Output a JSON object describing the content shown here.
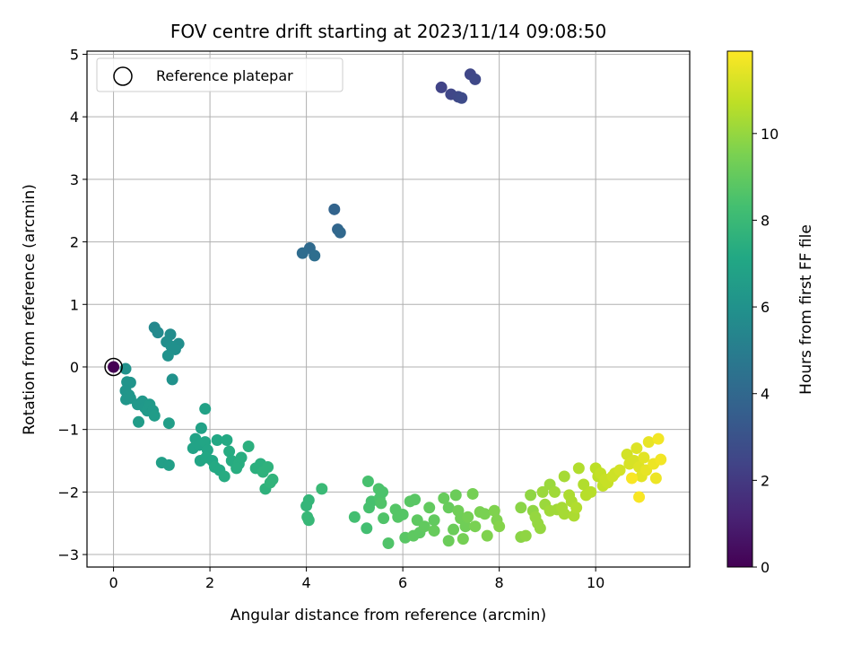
{
  "chart_data": {
    "type": "scatter",
    "title": "FOV centre drift starting at 2023/11/14 09:08:50",
    "xlabel": "Angular distance from reference (arcmin)",
    "ylabel": "Rotation from reference (arcmin)",
    "xlim": [
      -0.55,
      11.95
    ],
    "ylim": [
      -3.2,
      5.05
    ],
    "xticks": [
      0,
      2,
      4,
      6,
      8,
      10
    ],
    "yticks": [
      -3,
      -2,
      -1,
      0,
      1,
      2,
      3,
      4,
      5
    ],
    "grid": true,
    "legend": {
      "position": "upper-left",
      "entries": [
        "Reference platepar"
      ]
    },
    "reference_point": {
      "x": 0,
      "y": 0,
      "label": "Reference platepar"
    },
    "colorbar": {
      "label": "Hours from first FF file",
      "range": [
        0,
        11.9
      ],
      "ticks": [
        0,
        2,
        4,
        6,
        8,
        10
      ],
      "colormap": "viridis"
    },
    "series": [
      {
        "color_by": "hours",
        "points": [
          {
            "x": 0.0,
            "y": 0.0,
            "c": 0.0
          },
          {
            "x": 6.8,
            "y": 4.47,
            "c": 2.4
          },
          {
            "x": 7.0,
            "y": 4.36,
            "c": 2.5
          },
          {
            "x": 7.15,
            "y": 4.32,
            "c": 2.6
          },
          {
            "x": 7.22,
            "y": 4.3,
            "c": 2.7
          },
          {
            "x": 7.4,
            "y": 4.68,
            "c": 2.5
          },
          {
            "x": 7.5,
            "y": 4.6,
            "c": 2.6
          },
          {
            "x": 4.58,
            "y": 2.52,
            "c": 3.8
          },
          {
            "x": 4.65,
            "y": 2.2,
            "c": 3.9
          },
          {
            "x": 4.7,
            "y": 2.15,
            "c": 4.0
          },
          {
            "x": 4.07,
            "y": 1.9,
            "c": 4.1
          },
          {
            "x": 3.92,
            "y": 1.82,
            "c": 4.2
          },
          {
            "x": 4.17,
            "y": 1.78,
            "c": 4.3
          },
          {
            "x": 0.85,
            "y": 0.63,
            "c": 5.5
          },
          {
            "x": 0.92,
            "y": 0.55,
            "c": 5.6
          },
          {
            "x": 1.18,
            "y": 0.52,
            "c": 5.7
          },
          {
            "x": 1.1,
            "y": 0.4,
            "c": 5.8
          },
          {
            "x": 1.35,
            "y": 0.37,
            "c": 5.8
          },
          {
            "x": 1.2,
            "y": 0.33,
            "c": 5.9
          },
          {
            "x": 1.28,
            "y": 0.28,
            "c": 5.9
          },
          {
            "x": 1.13,
            "y": 0.18,
            "c": 6.0
          },
          {
            "x": 1.22,
            "y": -0.2,
            "c": 6.0
          },
          {
            "x": 0.25,
            "y": -0.03,
            "c": 6.0
          },
          {
            "x": 0.28,
            "y": -0.24,
            "c": 6.1
          },
          {
            "x": 0.35,
            "y": -0.25,
            "c": 6.1
          },
          {
            "x": 0.25,
            "y": -0.38,
            "c": 6.1
          },
          {
            "x": 0.32,
            "y": -0.45,
            "c": 6.2
          },
          {
            "x": 0.26,
            "y": -0.52,
            "c": 6.2
          },
          {
            "x": 0.35,
            "y": -0.5,
            "c": 6.2
          },
          {
            "x": 0.5,
            "y": -0.6,
            "c": 6.3
          },
          {
            "x": 0.6,
            "y": -0.55,
            "c": 6.3
          },
          {
            "x": 0.65,
            "y": -0.65,
            "c": 6.3
          },
          {
            "x": 0.7,
            "y": -0.7,
            "c": 6.4
          },
          {
            "x": 0.75,
            "y": -0.6,
            "c": 6.4
          },
          {
            "x": 0.82,
            "y": -0.7,
            "c": 6.4
          },
          {
            "x": 0.85,
            "y": -0.78,
            "c": 6.5
          },
          {
            "x": 0.52,
            "y": -0.88,
            "c": 6.5
          },
          {
            "x": 1.15,
            "y": -0.9,
            "c": 6.6
          },
          {
            "x": 1.0,
            "y": -1.53,
            "c": 6.7
          },
          {
            "x": 1.15,
            "y": -1.57,
            "c": 6.7
          },
          {
            "x": 1.9,
            "y": -0.67,
            "c": 6.8
          },
          {
            "x": 1.82,
            "y": -0.98,
            "c": 6.8
          },
          {
            "x": 1.7,
            "y": -1.15,
            "c": 6.9
          },
          {
            "x": 1.65,
            "y": -1.3,
            "c": 6.9
          },
          {
            "x": 1.78,
            "y": -1.25,
            "c": 6.9
          },
          {
            "x": 1.9,
            "y": -1.2,
            "c": 7.0
          },
          {
            "x": 1.95,
            "y": -1.33,
            "c": 7.0
          },
          {
            "x": 1.8,
            "y": -1.5,
            "c": 7.0
          },
          {
            "x": 1.92,
            "y": -1.45,
            "c": 7.1
          },
          {
            "x": 2.05,
            "y": -1.5,
            "c": 7.1
          },
          {
            "x": 2.15,
            "y": -1.17,
            "c": 7.1
          },
          {
            "x": 2.35,
            "y": -1.17,
            "c": 7.2
          },
          {
            "x": 2.1,
            "y": -1.6,
            "c": 7.2
          },
          {
            "x": 2.2,
            "y": -1.65,
            "c": 7.2
          },
          {
            "x": 2.3,
            "y": -1.75,
            "c": 7.3
          },
          {
            "x": 2.4,
            "y": -1.35,
            "c": 7.3
          },
          {
            "x": 2.45,
            "y": -1.5,
            "c": 7.3
          },
          {
            "x": 2.6,
            "y": -1.55,
            "c": 7.4
          },
          {
            "x": 2.65,
            "y": -1.45,
            "c": 7.4
          },
          {
            "x": 2.55,
            "y": -1.62,
            "c": 7.4
          },
          {
            "x": 2.8,
            "y": -1.27,
            "c": 7.5
          },
          {
            "x": 2.95,
            "y": -1.62,
            "c": 7.5
          },
          {
            "x": 3.05,
            "y": -1.55,
            "c": 7.5
          },
          {
            "x": 3.1,
            "y": -1.68,
            "c": 7.6
          },
          {
            "x": 3.2,
            "y": -1.6,
            "c": 7.6
          },
          {
            "x": 3.15,
            "y": -1.95,
            "c": 7.6
          },
          {
            "x": 3.25,
            "y": -1.85,
            "c": 7.7
          },
          {
            "x": 3.3,
            "y": -1.8,
            "c": 7.7
          },
          {
            "x": 4.05,
            "y": -2.13,
            "c": 7.8
          },
          {
            "x": 4.0,
            "y": -2.22,
            "c": 7.8
          },
          {
            "x": 4.05,
            "y": -2.45,
            "c": 7.9
          },
          {
            "x": 4.02,
            "y": -2.4,
            "c": 7.9
          },
          {
            "x": 4.32,
            "y": -1.95,
            "c": 8.0
          },
          {
            "x": 5.0,
            "y": -2.4,
            "c": 8.3
          },
          {
            "x": 5.25,
            "y": -2.58,
            "c": 8.3
          },
          {
            "x": 5.3,
            "y": -2.25,
            "c": 8.4
          },
          {
            "x": 5.28,
            "y": -1.83,
            "c": 8.4
          },
          {
            "x": 5.35,
            "y": -2.15,
            "c": 8.4
          },
          {
            "x": 5.5,
            "y": -1.95,
            "c": 8.5
          },
          {
            "x": 5.58,
            "y": -2.0,
            "c": 8.5
          },
          {
            "x": 5.52,
            "y": -2.1,
            "c": 8.5
          },
          {
            "x": 5.55,
            "y": -2.18,
            "c": 8.6
          },
          {
            "x": 5.6,
            "y": -2.42,
            "c": 8.6
          },
          {
            "x": 5.7,
            "y": -2.82,
            "c": 8.6
          },
          {
            "x": 5.85,
            "y": -2.28,
            "c": 8.7
          },
          {
            "x": 5.9,
            "y": -2.4,
            "c": 8.7
          },
          {
            "x": 6.0,
            "y": -2.36,
            "c": 8.7
          },
          {
            "x": 6.05,
            "y": -2.73,
            "c": 8.8
          },
          {
            "x": 6.15,
            "y": -2.15,
            "c": 8.8
          },
          {
            "x": 6.25,
            "y": -2.12,
            "c": 8.8
          },
          {
            "x": 6.22,
            "y": -2.7,
            "c": 8.9
          },
          {
            "x": 6.3,
            "y": -2.45,
            "c": 8.9
          },
          {
            "x": 6.35,
            "y": -2.65,
            "c": 8.9
          },
          {
            "x": 6.45,
            "y": -2.55,
            "c": 9.0
          },
          {
            "x": 6.55,
            "y": -2.25,
            "c": 9.0
          },
          {
            "x": 6.65,
            "y": -2.45,
            "c": 9.0
          },
          {
            "x": 6.65,
            "y": -2.62,
            "c": 9.1
          },
          {
            "x": 6.85,
            "y": -2.1,
            "c": 9.1
          },
          {
            "x": 6.95,
            "y": -2.25,
            "c": 9.1
          },
          {
            "x": 6.95,
            "y": -2.78,
            "c": 9.2
          },
          {
            "x": 7.05,
            "y": -2.6,
            "c": 9.2
          },
          {
            "x": 7.1,
            "y": -2.05,
            "c": 9.2
          },
          {
            "x": 7.2,
            "y": -2.42,
            "c": 9.3
          },
          {
            "x": 7.15,
            "y": -2.3,
            "c": 9.3
          },
          {
            "x": 7.3,
            "y": -2.55,
            "c": 9.3
          },
          {
            "x": 7.25,
            "y": -2.75,
            "c": 9.4
          },
          {
            "x": 7.35,
            "y": -2.4,
            "c": 9.4
          },
          {
            "x": 7.45,
            "y": -2.03,
            "c": 9.4
          },
          {
            "x": 7.5,
            "y": -2.55,
            "c": 9.5
          },
          {
            "x": 7.6,
            "y": -2.32,
            "c": 9.5
          },
          {
            "x": 7.7,
            "y": -2.35,
            "c": 9.5
          },
          {
            "x": 7.75,
            "y": -2.7,
            "c": 9.6
          },
          {
            "x": 7.9,
            "y": -2.3,
            "c": 9.6
          },
          {
            "x": 7.95,
            "y": -2.45,
            "c": 9.6
          },
          {
            "x": 8.0,
            "y": -2.55,
            "c": 9.7
          },
          {
            "x": 8.45,
            "y": -2.25,
            "c": 9.8
          },
          {
            "x": 8.45,
            "y": -2.72,
            "c": 9.8
          },
          {
            "x": 8.55,
            "y": -2.7,
            "c": 9.9
          },
          {
            "x": 8.65,
            "y": -2.05,
            "c": 9.9
          },
          {
            "x": 8.7,
            "y": -2.3,
            "c": 9.9
          },
          {
            "x": 8.75,
            "y": -2.4,
            "c": 10.0
          },
          {
            "x": 8.8,
            "y": -2.5,
            "c": 10.0
          },
          {
            "x": 8.85,
            "y": -2.58,
            "c": 10.0
          },
          {
            "x": 8.9,
            "y": -2.0,
            "c": 10.1
          },
          {
            "x": 8.95,
            "y": -2.2,
            "c": 10.1
          },
          {
            "x": 9.05,
            "y": -1.88,
            "c": 10.1
          },
          {
            "x": 9.05,
            "y": -2.3,
            "c": 10.2
          },
          {
            "x": 9.15,
            "y": -2.0,
            "c": 10.2
          },
          {
            "x": 9.2,
            "y": -2.28,
            "c": 10.2
          },
          {
            "x": 9.3,
            "y": -2.25,
            "c": 10.3
          },
          {
            "x": 9.35,
            "y": -2.35,
            "c": 10.3
          },
          {
            "x": 9.35,
            "y": -1.75,
            "c": 10.3
          },
          {
            "x": 9.45,
            "y": -2.05,
            "c": 10.4
          },
          {
            "x": 9.5,
            "y": -2.15,
            "c": 10.4
          },
          {
            "x": 9.55,
            "y": -2.38,
            "c": 10.4
          },
          {
            "x": 9.6,
            "y": -2.25,
            "c": 10.5
          },
          {
            "x": 9.65,
            "y": -1.62,
            "c": 10.5
          },
          {
            "x": 9.75,
            "y": -1.88,
            "c": 10.5
          },
          {
            "x": 9.8,
            "y": -2.05,
            "c": 10.6
          },
          {
            "x": 9.9,
            "y": -2.0,
            "c": 10.6
          },
          {
            "x": 10.0,
            "y": -1.62,
            "c": 10.7
          },
          {
            "x": 10.05,
            "y": -1.75,
            "c": 10.7
          },
          {
            "x": 10.1,
            "y": -1.7,
            "c": 10.8
          },
          {
            "x": 10.15,
            "y": -1.9,
            "c": 10.8
          },
          {
            "x": 10.2,
            "y": -1.8,
            "c": 10.9
          },
          {
            "x": 10.25,
            "y": -1.85,
            "c": 10.9
          },
          {
            "x": 10.35,
            "y": -1.75,
            "c": 11.0
          },
          {
            "x": 10.4,
            "y": -1.7,
            "c": 11.0
          },
          {
            "x": 10.5,
            "y": -1.65,
            "c": 11.1
          },
          {
            "x": 10.65,
            "y": -1.4,
            "c": 11.1
          },
          {
            "x": 10.7,
            "y": -1.55,
            "c": 11.2
          },
          {
            "x": 10.8,
            "y": -1.5,
            "c": 11.2
          },
          {
            "x": 10.85,
            "y": -1.3,
            "c": 11.3
          },
          {
            "x": 10.9,
            "y": -1.6,
            "c": 11.3
          },
          {
            "x": 10.95,
            "y": -1.75,
            "c": 11.4
          },
          {
            "x": 11.0,
            "y": -1.45,
            "c": 11.4
          },
          {
            "x": 11.05,
            "y": -1.65,
            "c": 11.5
          },
          {
            "x": 11.1,
            "y": -1.2,
            "c": 11.5
          },
          {
            "x": 11.2,
            "y": -1.55,
            "c": 11.6
          },
          {
            "x": 11.25,
            "y": -1.78,
            "c": 11.6
          },
          {
            "x": 11.3,
            "y": -1.15,
            "c": 11.7
          },
          {
            "x": 11.35,
            "y": -1.48,
            "c": 11.7
          },
          {
            "x": 10.9,
            "y": -2.08,
            "c": 11.8
          },
          {
            "x": 10.75,
            "y": -1.78,
            "c": 11.8
          }
        ]
      }
    ]
  },
  "colors": {
    "axes": "#000000",
    "grid": "#b0b0b0",
    "background": "#ffffff"
  }
}
